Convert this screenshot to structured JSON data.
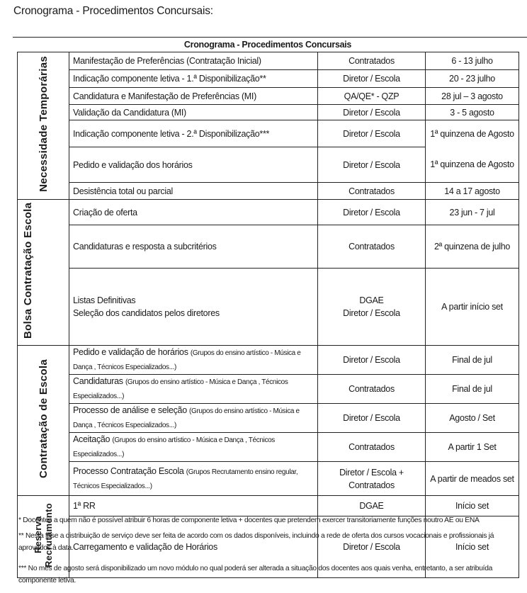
{
  "page_title": "Cronograma - Procedimentos Concursais:",
  "table_caption": "Cronograma - Procedimentos Concursais",
  "groups": [
    {
      "label": "Necessidade Temporárias",
      "rows": [
        {
          "activity": "Manifestação de Preferências (Contratação Inicial)",
          "note": "",
          "who": "Contratados",
          "when": "6 - 13 julho"
        },
        {
          "activity": "Indicação  componente letiva - 1.ª Disponibilização**",
          "note": "",
          "who": "Diretor / Escola",
          "when": "20 - 23 julho"
        },
        {
          "activity": "Candidatura e Manifestação de Preferências (MI)",
          "note": "",
          "who": "QA/QE* - QZP",
          "when": "28 jul – 3 agosto"
        },
        {
          "activity": "Validação da Candidatura (MI)",
          "note": "",
          "who": "Diretor / Escola",
          "when": "3 - 5  agosto"
        },
        {
          "activity": "Indicação componente letiva - 2.ª Disponibilização***",
          "note": "",
          "who": "Diretor / Escola",
          "when": "1ª quinzena de Agosto"
        },
        {
          "activity": "Pedido e validação dos horários",
          "note": "",
          "who": "Diretor / Escola",
          "when": "1ª quinzena de Agosto"
        },
        {
          "activity": "Desistência total ou parcial",
          "note": "",
          "who": "Contratados",
          "when": "14 a 17 agosto"
        }
      ]
    },
    {
      "label": "Bolsa Contratação Escola",
      "rows": [
        {
          "activity": "Criação de oferta",
          "note": "",
          "who": "Diretor / Escola",
          "when": "23  jun - 7 jul"
        },
        {
          "activity": "Candidaturas e resposta a subcritérios",
          "note": "",
          "who": "Contratados",
          "when": "2ª quinzena de julho"
        },
        {
          "activity": "Listas Definitivas",
          "activity2": "Seleção dos candidatos pelos diretores",
          "note": "",
          "who": "DGAE",
          "who2": "Diretor / Escola",
          "when": "A partir início set"
        }
      ]
    },
    {
      "label": "Contratação de Escola",
      "rows": [
        {
          "activity": "Pedido e validação de horários",
          "note": "(Grupos do ensino artístico - Música e Dança , Técnicos Especializados...)",
          "who": "Diretor / Escola",
          "when": "Final de jul"
        },
        {
          "activity": "Candidaturas",
          "note": "(Grupos do ensino artístico  - Música e Dança , Técnicos Especializados...)",
          "who": "Contratados",
          "when": "Final de jul"
        },
        {
          "activity": "Processo de análise e seleção",
          "note": "(Grupos do ensino artístico  - Música e Dança , Técnicos Especializados...)",
          "who": "Diretor / Escola",
          "when": "Agosto / Set"
        },
        {
          "activity": "Aceitação",
          "note": "(Grupos do ensino artístico  - Música e Dança , Técnicos Especializados...)",
          "who": "Contratados",
          "when": "A partir 1 Set"
        },
        {
          "activity": "Processo Contratação Escola",
          "note": "(Grupos Recrutamento ensino regular, Técnicos Especializados...)",
          "who": "Diretor / Escola + Contratados",
          "when": "A partir de meados set"
        }
      ]
    },
    {
      "label": "Reserva Recrutamento",
      "rows": [
        {
          "activity": "1ª RR",
          "note": "",
          "who": "DGAE",
          "when": "Início set"
        },
        {
          "activity": "Carregamento e validação de Horários",
          "note": "",
          "who": "Diretor / Escola",
          "when": "Início set"
        }
      ]
    }
  ],
  "footnotes": [
    "* Docentes a quem não é possível atribuir 6 horas de componente letiva + docentes que pretendem exercer transitoriamente funções noutro AE ou ENA",
    "** Nesta fase a distribuição de serviço deve ser feita de acordo com os dados disponíveis, incluindo a rede de oferta dos cursos vocacionais e profissionais já aprovados à data.",
    "*** No mês de agosto será disponibilizado um novo módulo no qual poderá ser alterada a situação dos docentes aos quais venha, entretanto, a ser atribuída componente letiva."
  ]
}
